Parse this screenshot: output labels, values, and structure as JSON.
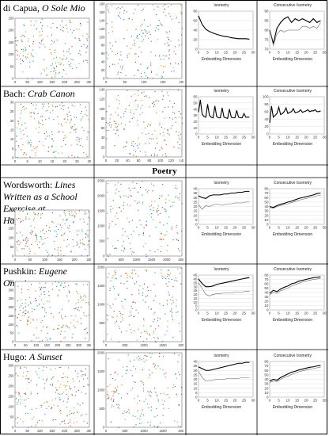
{
  "section_poetry": "Poetry",
  "rows": [
    {
      "label_pre": "di Capua, ",
      "label_it": "O Sole Mio",
      "iso_title": "Isometry",
      "cons_title": "Consecutive Isometry",
      "xlabel": "Embedding Dimension"
    },
    {
      "label_pre": "Bach: ",
      "label_it": "Crab Canon",
      "iso_title": "Isometry",
      "cons_title": "Consecutive Isometry",
      "xlabel": "Embedding Dimension"
    },
    {
      "label_pre": "Wordsworth: ",
      "label_it": "Lines Written as a School Exercise at Hawkshead",
      "iso_title": "Isometry",
      "cons_title": "Consecutive Isometry",
      "xlabel": "Embedding Dimension"
    },
    {
      "label_pre": "Pushkin: ",
      "label_it": "Eugene Onegin",
      "iso_title": "Isometry",
      "cons_title": "Consecutive Isometry",
      "xlabel": "Embedding Dimension"
    },
    {
      "label_pre": "Hugo: ",
      "label_it": "A Sunset",
      "iso_title": "Isometry",
      "cons_title": "Consecutive Isometry",
      "xlabel": "Embedding Dimension"
    }
  ],
  "chart_data": [
    {
      "type": "line",
      "title": "Isometry",
      "xlabel": "Embedding Dimension",
      "x": [
        0,
        2,
        4,
        6,
        8,
        10,
        12,
        14,
        16,
        18,
        20,
        22,
        24,
        26,
        28
      ],
      "series": [
        {
          "values": [
            70,
            52,
            42,
            37,
            34,
            31,
            29,
            27,
            26,
            24,
            23,
            22,
            22,
            22,
            21
          ]
        }
      ],
      "ylim": [
        0,
        80
      ],
      "yticks": [
        0,
        20,
        40,
        60,
        80
      ],
      "xticks": [
        0,
        5,
        10,
        15,
        20,
        25,
        30
      ]
    },
    {
      "type": "line",
      "title": "Consecutive Isometry",
      "xlabel": "Embedding Dimension",
      "x": [
        0,
        2,
        4,
        6,
        8,
        10,
        12,
        14,
        16,
        18,
        20,
        22,
        24,
        26,
        28
      ],
      "series": [
        {
          "values": [
            80,
            73,
            81,
            84,
            86,
            87,
            84,
            86,
            85,
            86,
            85,
            84,
            86,
            84,
            85
          ]
        },
        {
          "values": [
            80,
            72,
            78,
            80,
            79,
            80,
            80,
            80,
            80,
            82,
            82,
            81,
            82,
            81,
            84
          ]
        }
      ],
      "ylim": [
        70,
        90
      ],
      "yticks": [
        70,
        75,
        80,
        85,
        90
      ],
      "xticks": [
        0,
        5,
        10,
        15,
        20,
        25,
        30
      ]
    },
    {
      "type": "line",
      "title": "Isometry",
      "xlabel": "Embedding Dimension",
      "x": [
        0,
        1,
        2,
        3,
        4,
        5,
        6,
        7,
        8,
        9,
        10,
        11,
        12,
        13,
        14,
        15,
        16,
        17,
        18,
        19,
        20,
        21,
        22,
        23,
        24,
        25,
        26,
        27,
        28
      ],
      "series": [
        {
          "values": [
            35,
            55,
            32,
            28,
            27,
            48,
            30,
            27,
            26,
            45,
            28,
            26,
            26,
            42,
            27,
            26,
            25,
            40,
            27,
            26,
            26,
            38,
            27,
            26,
            26,
            33,
            27,
            27,
            27
          ]
        }
      ],
      "ylim": [
        0,
        60
      ],
      "yticks": [
        0,
        10,
        20,
        30,
        40,
        50,
        60
      ],
      "xticks": [
        0,
        5,
        10,
        15,
        20,
        25,
        30
      ]
    },
    {
      "type": "line",
      "title": "Consecutive Isometry",
      "xlabel": "Embedding Dimension",
      "x": [
        0,
        1,
        2,
        3,
        4,
        5,
        6,
        7,
        8,
        9,
        10,
        11,
        12,
        13,
        14,
        15,
        16,
        17,
        18,
        19,
        20,
        21,
        22,
        23,
        24,
        25,
        26,
        27,
        28
      ],
      "series": [
        {
          "values": [
            30,
            75,
            45,
            50,
            55,
            72,
            52,
            55,
            60,
            70,
            55,
            58,
            60,
            68,
            57,
            58,
            60,
            65,
            58,
            60,
            62,
            65,
            60,
            62,
            62,
            65,
            60,
            60,
            62
          ]
        }
      ],
      "ylim": [
        0,
        100
      ],
      "yticks": [
        0,
        20,
        40,
        60,
        80,
        100
      ],
      "xticks": [
        0,
        5,
        10,
        15,
        20,
        25,
        30
      ]
    },
    {
      "type": "line",
      "title": "Isometry",
      "xlabel": "Embedding Dimension",
      "x": [
        0,
        2,
        4,
        6,
        8,
        10,
        12,
        14,
        16,
        18,
        20,
        22,
        24,
        26,
        28
      ],
      "series": [
        {
          "values": [
            32,
            30,
            29,
            32,
            33,
            33,
            33,
            34,
            34,
            35,
            35,
            36,
            36,
            37,
            37
          ]
        },
        {
          "values": [
            22,
            17,
            21,
            20,
            22,
            23,
            22,
            22,
            23,
            23,
            24,
            24,
            24,
            25,
            25
          ]
        }
      ],
      "ylim": [
        0,
        40
      ],
      "yticks": [
        0,
        5,
        10,
        15,
        20,
        25,
        30,
        35,
        40
      ],
      "xticks": [
        0,
        5,
        10,
        15,
        20,
        25,
        30
      ]
    },
    {
      "type": "line",
      "title": "Consecutive Isometry",
      "xlabel": "Embedding Dimension",
      "x": [
        0,
        2,
        4,
        6,
        8,
        10,
        12,
        14,
        16,
        18,
        20,
        22,
        24,
        26,
        28
      ],
      "series": [
        {
          "values": [
            40,
            38,
            42,
            45,
            47,
            50,
            52,
            55,
            58,
            60,
            62,
            64,
            66,
            69,
            70
          ]
        },
        {
          "values": [
            38,
            36,
            40,
            42,
            44,
            46,
            49,
            51,
            54,
            56,
            58,
            60,
            62,
            64,
            65
          ]
        }
      ],
      "ylim": [
        0,
        80
      ],
      "yticks": [
        0,
        10,
        20,
        30,
        40,
        50,
        60,
        70,
        80
      ],
      "xticks": [
        0,
        5,
        10,
        15,
        20,
        25,
        30
      ]
    },
    {
      "type": "line",
      "title": "Isometry",
      "xlabel": "Embedding Dimension",
      "x": [
        0,
        2,
        4,
        6,
        8,
        10,
        12,
        14,
        16,
        18,
        20,
        22,
        24,
        26,
        28
      ],
      "series": [
        {
          "values": [
            40,
            34,
            30,
            30,
            31,
            33,
            34,
            35,
            36,
            37,
            38,
            39,
            40,
            41,
            42
          ]
        },
        {
          "values": [
            35,
            28,
            20,
            18,
            20,
            21,
            21,
            22,
            22,
            22,
            23,
            23,
            23,
            24,
            24
          ]
        }
      ],
      "ylim": [
        0,
        45
      ],
      "yticks": [
        0,
        5,
        10,
        15,
        20,
        25,
        30,
        35,
        40,
        45
      ],
      "xticks": [
        0,
        5,
        10,
        15,
        20,
        25,
        30
      ]
    },
    {
      "type": "line",
      "title": "Consecutive Isometry",
      "xlabel": "Embedding Dimension",
      "x": [
        0,
        2,
        4,
        6,
        8,
        10,
        12,
        14,
        16,
        18,
        20,
        22,
        24,
        26,
        28
      ],
      "series": [
        {
          "values": [
            38,
            45,
            42,
            48,
            52,
            55,
            60,
            62,
            66,
            68,
            70,
            72,
            74,
            75,
            76
          ]
        },
        {
          "values": [
            35,
            40,
            38,
            44,
            47,
            50,
            55,
            58,
            61,
            64,
            66,
            68,
            70,
            71,
            72
          ]
        }
      ],
      "ylim": [
        0,
        80
      ],
      "yticks": [
        0,
        10,
        20,
        30,
        40,
        50,
        60,
        70,
        80
      ],
      "xticks": [
        0,
        5,
        10,
        15,
        20,
        25,
        30
      ]
    },
    {
      "type": "line",
      "title": "Isometry",
      "xlabel": "Embedding Dimension",
      "x": [
        0,
        2,
        4,
        6,
        8,
        10,
        12,
        14,
        16,
        18,
        20,
        22,
        24,
        26,
        28
      ],
      "series": [
        {
          "values": [
            34,
            32,
            30,
            30,
            31,
            32,
            33,
            34,
            35,
            36,
            37,
            38,
            38,
            39,
            39
          ]
        },
        {
          "values": [
            29,
            22,
            18,
            18,
            19,
            20,
            20,
            20,
            21,
            21,
            21,
            21,
            22,
            22,
            22
          ]
        }
      ],
      "ylim": [
        0,
        40
      ],
      "yticks": [
        0,
        5,
        10,
        15,
        20,
        25,
        30,
        35,
        40
      ],
      "xticks": [
        0,
        5,
        10,
        15,
        20,
        25,
        30
      ]
    },
    {
      "type": "line",
      "title": "Consecutive Isometry",
      "xlabel": "Embedding Dimension",
      "x": [
        0,
        2,
        4,
        6,
        8,
        10,
        12,
        14,
        16,
        18,
        20,
        22,
        24,
        26,
        28
      ],
      "series": [
        {
          "values": [
            36,
            40,
            38,
            44,
            48,
            52,
            56,
            58,
            61,
            63,
            65,
            67,
            68,
            70,
            71
          ]
        },
        {
          "values": [
            33,
            36,
            35,
            40,
            44,
            47,
            51,
            54,
            57,
            59,
            61,
            63,
            64,
            66,
            67
          ]
        }
      ],
      "ylim": [
        0,
        80
      ],
      "yticks": [
        0,
        10,
        20,
        30,
        40,
        50,
        60,
        70,
        80
      ],
      "xticks": [
        0,
        5,
        10,
        15,
        20,
        25,
        30
      ]
    }
  ],
  "recurrence_plots": [
    {
      "xticks": [
        "0",
        "50",
        "100",
        "150",
        "200",
        "250",
        "300"
      ],
      "yticks": [
        "0",
        "50",
        "100",
        "150",
        "200",
        "250"
      ]
    },
    {
      "xticks": [
        "0",
        "50",
        "100",
        "150",
        "200"
      ],
      "yticks": [
        "0",
        "20",
        "40",
        "60",
        "80",
        "100",
        "120",
        "140",
        "160",
        "180"
      ]
    },
    {
      "xticks": [
        "0",
        "5",
        "10",
        "15",
        "20",
        "25",
        "30"
      ],
      "yticks": [
        "0",
        "5",
        "10",
        "15",
        "20",
        "25",
        "30"
      ]
    },
    {
      "xticks": [
        "0",
        "20",
        "40",
        "60",
        "80",
        "100",
        "120",
        "140"
      ],
      "yticks": [
        "0",
        "20",
        "40",
        "60",
        "80",
        "100",
        "120",
        "140"
      ]
    },
    {
      "xticks": [
        "0",
        "50",
        "100",
        "150",
        "200",
        "250"
      ],
      "yticks": [
        "0",
        "50",
        "100",
        "150",
        "200",
        "250"
      ]
    },
    {
      "xticks": [
        "0",
        "500",
        "1000",
        "1500",
        "2000",
        "2500"
      ],
      "yticks": [
        "0",
        "500",
        "1000",
        "1500",
        "2000",
        "2500"
      ]
    },
    {
      "xticks": [
        "0",
        "50",
        "100",
        "150",
        "200",
        "250",
        "300",
        "350"
      ],
      "yticks": [
        "0",
        "50",
        "100",
        "150",
        "200",
        "250",
        "300",
        "350"
      ]
    },
    {
      "xticks": [
        "0",
        "500",
        "1000",
        "1500",
        "2000"
      ],
      "yticks": [
        "0",
        "500",
        "1000",
        "1500",
        "2000"
      ]
    },
    {
      "xticks": [
        "0",
        "50",
        "100",
        "150",
        "200",
        "250",
        "300"
      ],
      "yticks": [
        "0",
        "50",
        "100",
        "150",
        "200",
        "250",
        "300"
      ]
    },
    {
      "xticks": [
        "0",
        "500",
        "1000",
        "1500",
        "2000"
      ],
      "yticks": [
        "0",
        "500",
        "1000",
        "1500",
        "2000"
      ]
    }
  ]
}
